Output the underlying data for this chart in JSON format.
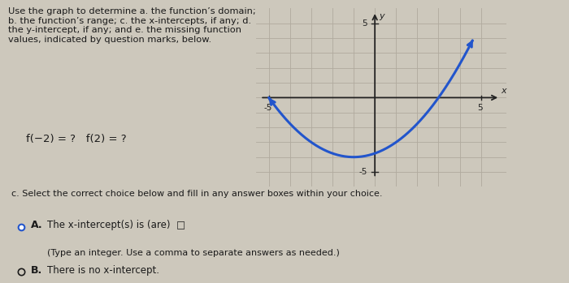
{
  "bg_color": "#cdc8bc",
  "text_color": "#1a1a1a",
  "title_text": "Use the graph to determine a. the function’s domain;\nb. the function’s range; c. the x-intercepts, if any; d.\nthe y-intercept, if any; and e. the missing function\nvalues, indicated by question marks, below.",
  "function_eq": "f(−2) = ?   f(2) = ?",
  "bottom_sep_text": "c. Select the correct choice below and fill in any answer boxes within your choice.",
  "optA_text": "The x-intercept(s) is (are)",
  "optA_sub": "(Type an integer. Use a comma to separate answers as needed.)",
  "optB_text": "There is no x-intercept.",
  "graph_xlim": [
    -5,
    5
  ],
  "graph_ylim": [
    -5,
    5
  ],
  "curve_color": "#2255cc",
  "grid_color": "#b0aa9e",
  "axis_color": "#222222",
  "axis_label_x": "x",
  "axis_label_y": "y"
}
